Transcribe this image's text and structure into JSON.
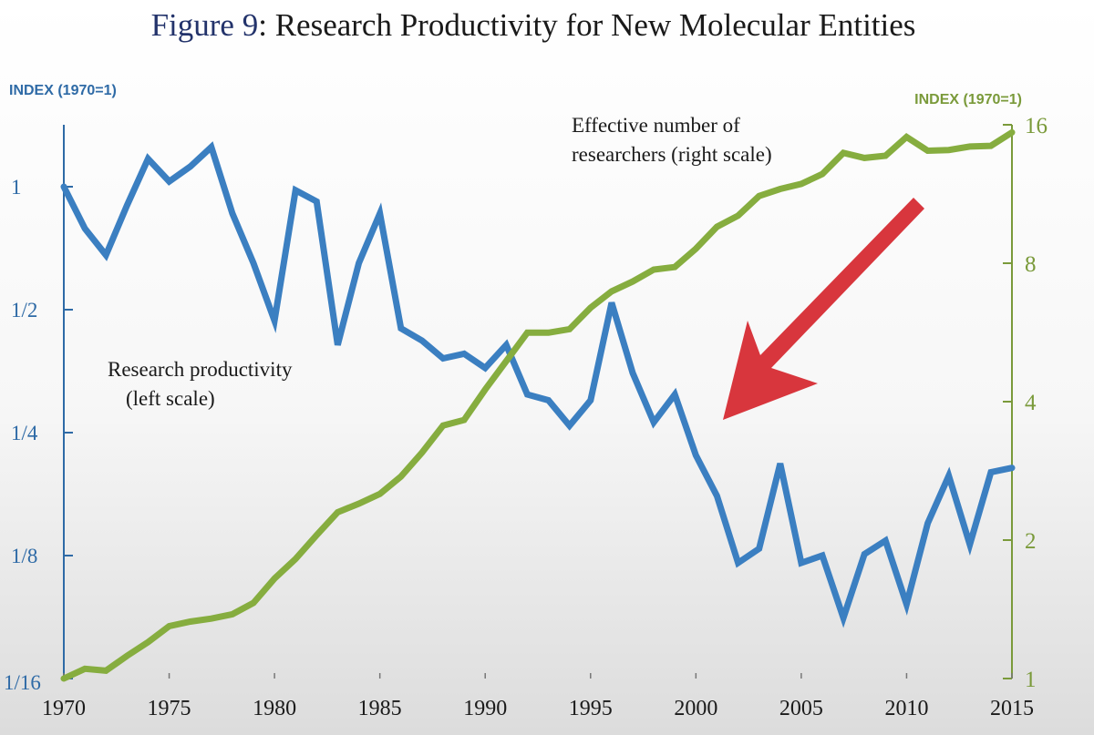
{
  "title": {
    "figure_label": "Figure 9",
    "text": ": Research Productivity for New Molecular Entities"
  },
  "colors": {
    "productivity": "#3b7fc1",
    "researchers": "#86ad3f",
    "left_axis": "#2e6aa6",
    "right_axis": "#7a9a3a",
    "arrow": "#d8363d"
  },
  "chart_data": {
    "type": "line",
    "title": "Figure 9: Research Productivity for New Molecular Entities",
    "x": [
      1970,
      1971,
      1972,
      1973,
      1974,
      1975,
      1976,
      1977,
      1978,
      1979,
      1980,
      1981,
      1982,
      1983,
      1984,
      1985,
      1986,
      1987,
      1988,
      1989,
      1990,
      1991,
      1992,
      1993,
      1994,
      1995,
      1996,
      1997,
      1998,
      1999,
      2000,
      2001,
      2002,
      2003,
      2004,
      2005,
      2006,
      2007,
      2008,
      2009,
      2010,
      2011,
      2012,
      2013,
      2014,
      2015
    ],
    "xlim": [
      1970,
      2015
    ],
    "x_ticks": [
      "1970",
      "1975",
      "1980",
      "1985",
      "1990",
      "1995",
      "2000",
      "2005",
      "2010",
      "2015"
    ],
    "left_axis": {
      "label": "INDEX (1970=1)",
      "scale": "log2",
      "ylim": [
        0.0625,
        1.4
      ],
      "ticks": [
        {
          "value": 1,
          "label": "1"
        },
        {
          "value": 0.5,
          "label": "1/2"
        },
        {
          "value": 0.25,
          "label": "1/4"
        },
        {
          "value": 0.125,
          "label": "1/8"
        },
        {
          "value": 0.0625,
          "label": "1/16"
        }
      ]
    },
    "right_axis": {
      "label": "INDEX (1970=1)",
      "scale": "log2",
      "ylim": [
        1,
        16
      ],
      "ticks": [
        {
          "value": 16,
          "label": "16"
        },
        {
          "value": 8,
          "label": "8"
        },
        {
          "value": 4,
          "label": "4"
        },
        {
          "value": 2,
          "label": "2"
        },
        {
          "value": 1,
          "label": "1"
        }
      ]
    },
    "series": [
      {
        "name": "Research productivity (left scale)",
        "axis": "left",
        "values": [
          1.0,
          0.79,
          0.68,
          0.9,
          1.17,
          1.03,
          1.12,
          1.25,
          0.86,
          0.65,
          0.47,
          0.98,
          0.92,
          0.41,
          0.65,
          0.86,
          0.45,
          0.42,
          0.38,
          0.39,
          0.36,
          0.41,
          0.31,
          0.3,
          0.26,
          0.3,
          0.52,
          0.35,
          0.265,
          0.31,
          0.22,
          0.175,
          0.12,
          0.13,
          0.21,
          0.12,
          0.125,
          0.088,
          0.126,
          0.136,
          0.095,
          0.15,
          0.196,
          0.133,
          0.2,
          0.205
        ]
      },
      {
        "name": "Effective number of researchers (right scale)",
        "axis": "right",
        "values": [
          1.0,
          1.05,
          1.04,
          1.12,
          1.2,
          1.3,
          1.33,
          1.35,
          1.38,
          1.46,
          1.65,
          1.82,
          2.05,
          2.3,
          2.4,
          2.52,
          2.75,
          3.1,
          3.55,
          3.65,
          4.25,
          4.9,
          5.65,
          5.65,
          5.75,
          6.4,
          6.95,
          7.3,
          7.75,
          7.85,
          8.6,
          9.6,
          10.15,
          11.2,
          11.6,
          11.9,
          12.5,
          13.9,
          13.55,
          13.7,
          15.05,
          14.05,
          14.1,
          14.35,
          14.4,
          15.4
        ]
      }
    ],
    "annotations": {
      "researchers_line1": "Effective number of",
      "researchers_line2": "researchers (right scale)",
      "productivity_line1": "Research productivity",
      "productivity_line2": "(left scale)"
    },
    "grid": false,
    "legend": "none"
  }
}
